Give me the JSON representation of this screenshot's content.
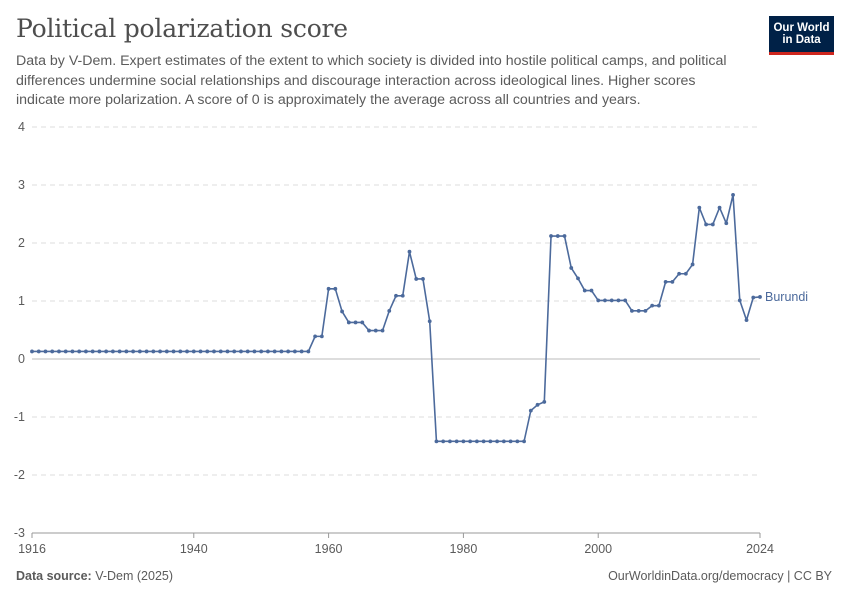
{
  "header": {
    "title": "Political polarization score",
    "subtitle": "Data by V-Dem. Expert estimates of the extent to which society is divided into hostile political camps, and political differences undermine social relationships and discourage interaction across ideological lines. Higher scores indicate more polarization. A score of 0 is approximately the average across all countries and years.",
    "logo_line1": "Our World",
    "logo_line2": "in Data"
  },
  "footer": {
    "source_label": "Data source:",
    "source_value": "V-Dem (2025)",
    "link": "OurWorldinData.org/democracy | CC BY"
  },
  "colors": {
    "series": "#4c6a9c",
    "grid": "#dddddd",
    "zero_line": "#bbbbbb",
    "text": "#5b5b5b"
  },
  "chart_data": {
    "type": "line",
    "title": "Political polarization score",
    "xlabel": "",
    "ylabel": "",
    "xlim": [
      1916,
      2024
    ],
    "ylim": [
      -3,
      4
    ],
    "y_ticks": [
      -3,
      -2,
      -1,
      0,
      1,
      2,
      3,
      4
    ],
    "x_ticks": [
      1916,
      1940,
      1960,
      1980,
      2000,
      2024
    ],
    "grid": true,
    "legend": "inline-right",
    "series": [
      {
        "name": "Burundi",
        "points": [
          [
            1916,
            0.13
          ],
          [
            1917,
            0.13
          ],
          [
            1918,
            0.13
          ],
          [
            1919,
            0.13
          ],
          [
            1920,
            0.13
          ],
          [
            1921,
            0.13
          ],
          [
            1922,
            0.13
          ],
          [
            1923,
            0.13
          ],
          [
            1924,
            0.13
          ],
          [
            1925,
            0.13
          ],
          [
            1926,
            0.13
          ],
          [
            1927,
            0.13
          ],
          [
            1928,
            0.13
          ],
          [
            1929,
            0.13
          ],
          [
            1930,
            0.13
          ],
          [
            1931,
            0.13
          ],
          [
            1932,
            0.13
          ],
          [
            1933,
            0.13
          ],
          [
            1934,
            0.13
          ],
          [
            1935,
            0.13
          ],
          [
            1936,
            0.13
          ],
          [
            1937,
            0.13
          ],
          [
            1938,
            0.13
          ],
          [
            1939,
            0.13
          ],
          [
            1940,
            0.13
          ],
          [
            1941,
            0.13
          ],
          [
            1942,
            0.13
          ],
          [
            1943,
            0.13
          ],
          [
            1944,
            0.13
          ],
          [
            1945,
            0.13
          ],
          [
            1946,
            0.13
          ],
          [
            1947,
            0.13
          ],
          [
            1948,
            0.13
          ],
          [
            1949,
            0.13
          ],
          [
            1950,
            0.13
          ],
          [
            1951,
            0.13
          ],
          [
            1952,
            0.13
          ],
          [
            1953,
            0.13
          ],
          [
            1954,
            0.13
          ],
          [
            1955,
            0.13
          ],
          [
            1956,
            0.13
          ],
          [
            1957,
            0.13
          ],
          [
            1958,
            0.39
          ],
          [
            1959,
            0.39
          ],
          [
            1960,
            1.21
          ],
          [
            1961,
            1.21
          ],
          [
            1962,
            0.82
          ],
          [
            1963,
            0.63
          ],
          [
            1964,
            0.63
          ],
          [
            1965,
            0.63
          ],
          [
            1966,
            0.49
          ],
          [
            1967,
            0.49
          ],
          [
            1968,
            0.49
          ],
          [
            1969,
            0.83
          ],
          [
            1970,
            1.09
          ],
          [
            1971,
            1.09
          ],
          [
            1972,
            1.85
          ],
          [
            1973,
            1.38
          ],
          [
            1974,
            1.38
          ],
          [
            1975,
            0.65
          ],
          [
            1976,
            -1.42
          ],
          [
            1977,
            -1.42
          ],
          [
            1978,
            -1.42
          ],
          [
            1979,
            -1.42
          ],
          [
            1980,
            -1.42
          ],
          [
            1981,
            -1.42
          ],
          [
            1982,
            -1.42
          ],
          [
            1983,
            -1.42
          ],
          [
            1984,
            -1.42
          ],
          [
            1985,
            -1.42
          ],
          [
            1986,
            -1.42
          ],
          [
            1987,
            -1.42
          ],
          [
            1988,
            -1.42
          ],
          [
            1989,
            -1.42
          ],
          [
            1990,
            -0.89
          ],
          [
            1991,
            -0.79
          ],
          [
            1992,
            -0.74
          ],
          [
            1993,
            2.12
          ],
          [
            1994,
            2.12
          ],
          [
            1995,
            2.12
          ],
          [
            1996,
            1.57
          ],
          [
            1997,
            1.39
          ],
          [
            1998,
            1.18
          ],
          [
            1999,
            1.18
          ],
          [
            2000,
            1.01
          ],
          [
            2001,
            1.01
          ],
          [
            2002,
            1.01
          ],
          [
            2003,
            1.01
          ],
          [
            2004,
            1.01
          ],
          [
            2005,
            0.83
          ],
          [
            2006,
            0.83
          ],
          [
            2007,
            0.83
          ],
          [
            2008,
            0.92
          ],
          [
            2009,
            0.92
          ],
          [
            2010,
            1.33
          ],
          [
            2011,
            1.33
          ],
          [
            2012,
            1.47
          ],
          [
            2013,
            1.47
          ],
          [
            2014,
            1.63
          ],
          [
            2015,
            2.61
          ],
          [
            2016,
            2.32
          ],
          [
            2017,
            2.32
          ],
          [
            2018,
            2.61
          ],
          [
            2019,
            2.34
          ],
          [
            2020,
            2.83
          ],
          [
            2021,
            1.01
          ],
          [
            2022,
            0.67
          ],
          [
            2023,
            1.06
          ],
          [
            2024,
            1.07
          ]
        ]
      }
    ]
  }
}
